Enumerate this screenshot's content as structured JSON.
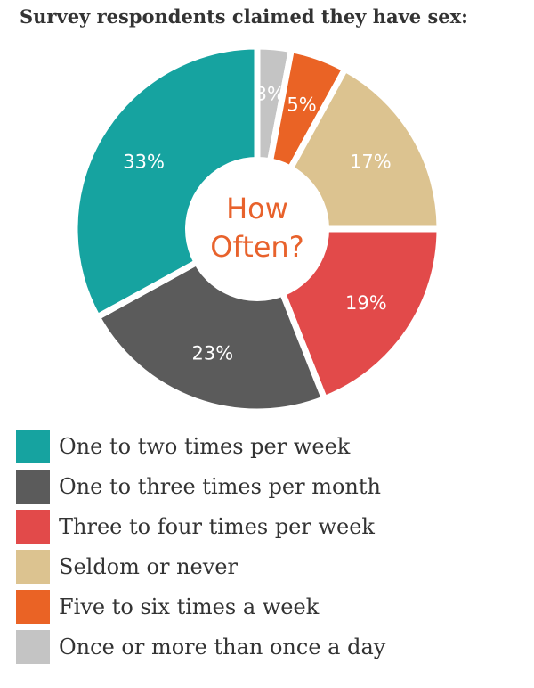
{
  "title": "Survey respondents claimed they have sex:",
  "center": {
    "line1": "How",
    "line2": "Often?"
  },
  "chart_data": {
    "type": "pie",
    "title": "Survey respondents claimed they have sex:",
    "categories": [
      "Once or more than once a day",
      "Five to six times a week",
      "Seldom or never",
      "Three to four times per week",
      "One to three times per month",
      "One to two times per week"
    ],
    "values": [
      3,
      5,
      17,
      19,
      23,
      33
    ],
    "labels": [
      "3%",
      "5%",
      "17%",
      "19%",
      "23%",
      "33%"
    ],
    "colors": [
      "#c4c4c4",
      "#ea6325",
      "#dcc390",
      "#e24a4a",
      "#5b5b5b",
      "#16a3a0"
    ],
    "legend_position": "bottom"
  },
  "legend": [
    {
      "label": "One to two times per week",
      "color": "#16a3a0"
    },
    {
      "label": "One to three times per month",
      "color": "#5b5b5b"
    },
    {
      "label": "Three to four times per week",
      "color": "#e24a4a"
    },
    {
      "label": "Seldom or never",
      "color": "#dcc390"
    },
    {
      "label": "Five to six times a week",
      "color": "#ea6325"
    },
    {
      "label": "Once or more than once a day",
      "color": "#c4c4c4"
    }
  ]
}
